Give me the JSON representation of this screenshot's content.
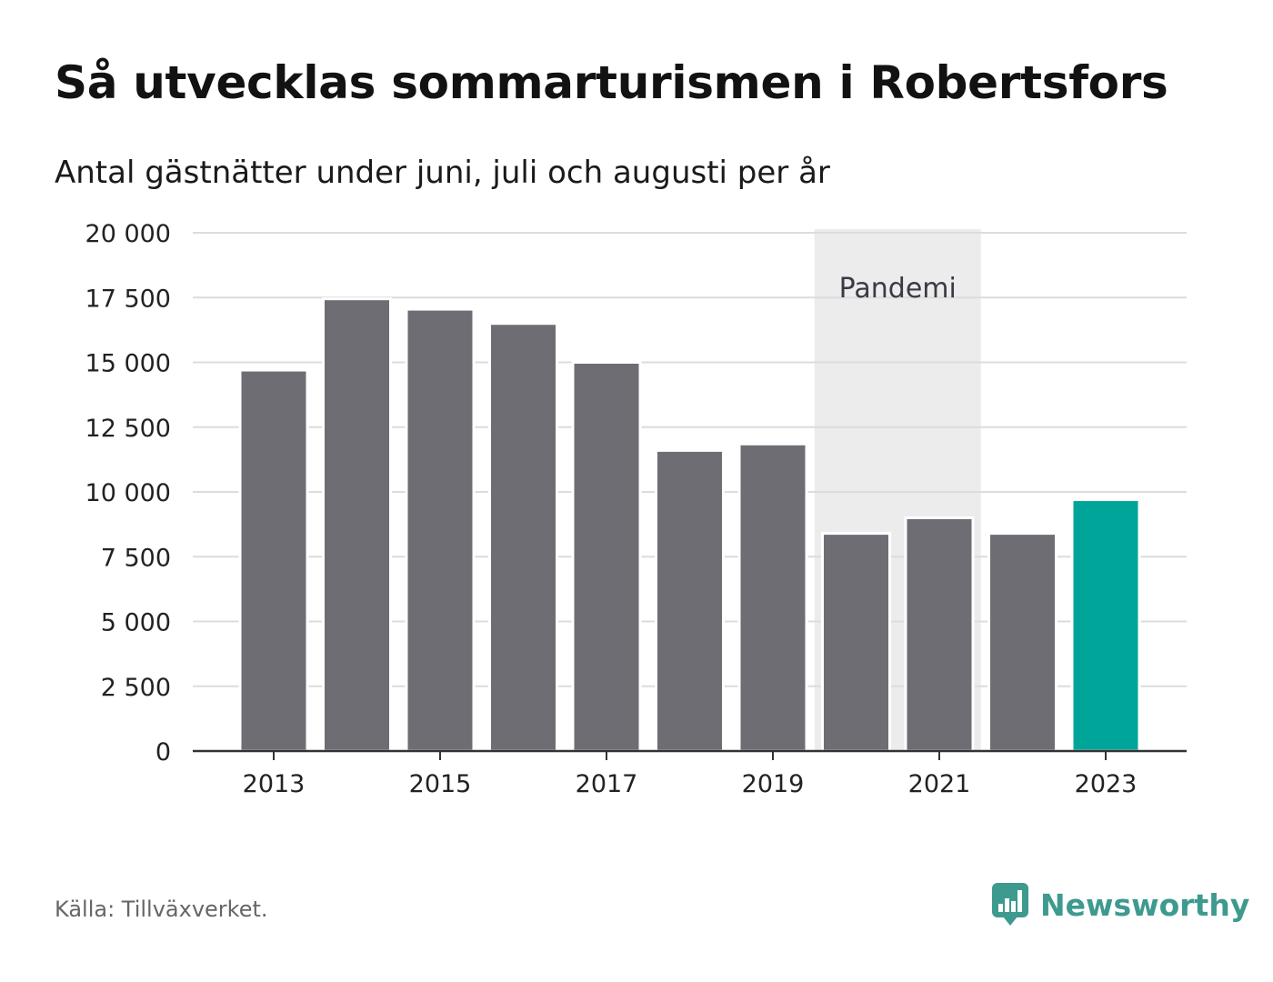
{
  "header": {
    "title": "Så utvecklas sommarturismen i Robertsfors",
    "subtitle": "Antal gästnätter under juni, juli och augusti per år"
  },
  "footer": {
    "source": "Källa: Tillväxverket.",
    "brand": "Newsworthy",
    "brand_icon": "bar-chart-speech-bubble-icon"
  },
  "colors": {
    "bar": "#6e6d74",
    "highlight": "#00a59a",
    "pandemic_band": "#ececec",
    "grid": "#dcdcdc",
    "axis": "#333333",
    "brand": "#3e9a8f"
  },
  "chart_data": {
    "type": "bar",
    "title": "Så utvecklas sommarturismen i Robertsfors",
    "subtitle": "Antal gästnätter under juni, juli och augusti per år",
    "categories": [
      "2013",
      "2014",
      "2015",
      "2016",
      "2017",
      "2018",
      "2019",
      "2020",
      "2021",
      "2022",
      "2023"
    ],
    "values": [
      14700,
      17450,
      17050,
      16500,
      15000,
      11600,
      11850,
      8400,
      9000,
      8400,
      9700
    ],
    "highlight_category": "2023",
    "x_tick_labels": [
      "2013",
      "2015",
      "2017",
      "2019",
      "2021",
      "2023"
    ],
    "y_ticks": [
      0,
      2500,
      5000,
      7500,
      10000,
      12500,
      15000,
      17500,
      20000
    ],
    "y_tick_labels": [
      "0",
      "2 500",
      "5 000",
      "7 500",
      "10 000",
      "12 500",
      "15 000",
      "17 500",
      "20 000"
    ],
    "ylim": [
      0,
      20000
    ],
    "grid": true,
    "legend": "none",
    "annotation": {
      "label": "Pandemi",
      "from_category": "2020",
      "to_category": "2021"
    }
  }
}
